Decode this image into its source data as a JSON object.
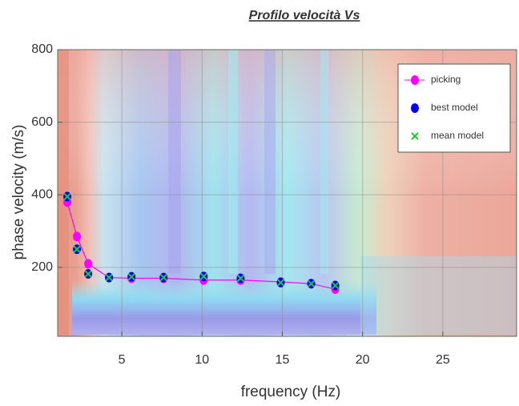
{
  "chart_data": {
    "type": "line",
    "title": "Profilo velocità Vs",
    "xlabel": "frequency (Hz)",
    "ylabel": "phase velocity (m/s)",
    "x": [
      1.6,
      2.2,
      2.9,
      4.2,
      5.6,
      7.6,
      10.1,
      12.4,
      14.9,
      16.8,
      18.3
    ],
    "series": [
      {
        "name": "picking",
        "color": "#ff00ff",
        "marker": "o",
        "line": true,
        "values": [
          380,
          285,
          210,
          172,
          170,
          170,
          165,
          165,
          160,
          155,
          140
        ]
      },
      {
        "name": "best model",
        "color": "#0000ff",
        "marker": "o",
        "line": false,
        "values": [
          395,
          250,
          182,
          172,
          174,
          172,
          175,
          170,
          158,
          155,
          150
        ]
      },
      {
        "name": "mean model",
        "color": "#22cc22",
        "marker": "x",
        "line": false,
        "values": [
          395,
          250,
          182,
          172,
          174,
          172,
          175,
          170,
          158,
          155,
          150
        ]
      }
    ],
    "xlim": [
      1,
      29.6
    ],
    "xticks": [
      5,
      10,
      15,
      20,
      25
    ],
    "ylim": [
      10,
      800
    ],
    "yticks": [
      200,
      400,
      600,
      800
    ],
    "grid": true,
    "legend": "upper right"
  }
}
